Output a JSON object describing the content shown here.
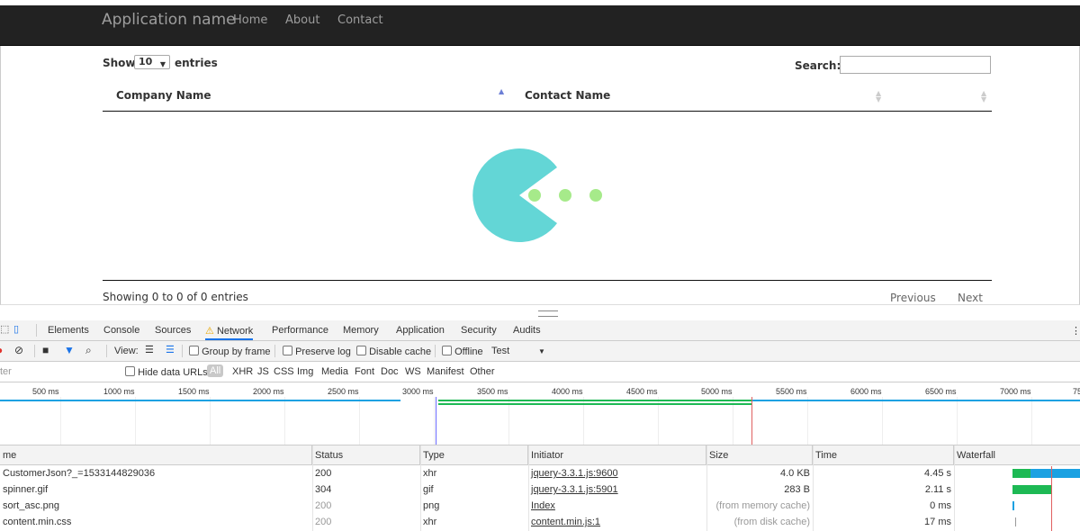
{
  "navbar": {
    "brand": "Application name",
    "links": [
      "Home",
      "About",
      "Contact"
    ]
  },
  "datatable": {
    "show_label": "Show",
    "length_value": "10",
    "entries_label": "entries",
    "search_label": "Search:",
    "search_value": "",
    "columns": [
      "Company Name",
      "Contact Name"
    ],
    "info": "Showing 0 to 0 of 0 entries",
    "previous": "Previous",
    "next": "Next"
  },
  "spinner": {
    "color": "#63d6d6",
    "dot_color": "#a6ea8a"
  },
  "devtools": {
    "tabs": [
      "Elements",
      "Console",
      "Sources",
      "Network",
      "Performance",
      "Memory",
      "Application",
      "Security",
      "Audits"
    ],
    "active_tab": "Network",
    "toolbar": {
      "view_label": "View:",
      "group_by_frame": "Group by frame",
      "preserve_log": "Preserve log",
      "disable_cache": "Disable cache",
      "offline": "Offline",
      "throttle": "Test"
    },
    "filter": {
      "placeholder": "ter",
      "hide_data_urls": "Hide data URLs",
      "types": [
        "All",
        "XHR",
        "JS",
        "CSS",
        "Img",
        "Media",
        "Font",
        "Doc",
        "WS",
        "Manifest",
        "Other"
      ]
    },
    "timeline_ticks": [
      "500 ms",
      "1000 ms",
      "1500 ms",
      "2000 ms",
      "2500 ms",
      "3000 ms",
      "3500 ms",
      "4000 ms",
      "4500 ms",
      "5000 ms",
      "5500 ms",
      "6000 ms",
      "6500 ms",
      "7000 ms",
      "75"
    ],
    "columns": [
      "me",
      "Status",
      "Type",
      "Initiator",
      "Size",
      "Time",
      "Waterfall"
    ],
    "rows": [
      {
        "name": "CustomerJson?_=1533144829036",
        "status": "200",
        "type": "xhr",
        "initiator": "jquery-3.3.1.js:9600",
        "size": "4.0 KB",
        "time": "4.45 s"
      },
      {
        "name": "spinner.gif",
        "status": "304",
        "type": "gif",
        "initiator": "jquery-3.3.1.js:5901",
        "size": "283 B",
        "time": "2.11 s"
      },
      {
        "name": "sort_asc.png",
        "status": "200",
        "type": "png",
        "initiator": "Index",
        "size": "(from memory cache)",
        "time": "0 ms"
      },
      {
        "name": "content.min.css",
        "status": "200",
        "type": "xhr",
        "initiator": "content.min.js:1",
        "size": "(from disk cache)",
        "time": "17 ms"
      }
    ],
    "colors": {
      "blue": "#1ba1e2",
      "green": "#1db954",
      "accent": "#1a73e8"
    }
  }
}
